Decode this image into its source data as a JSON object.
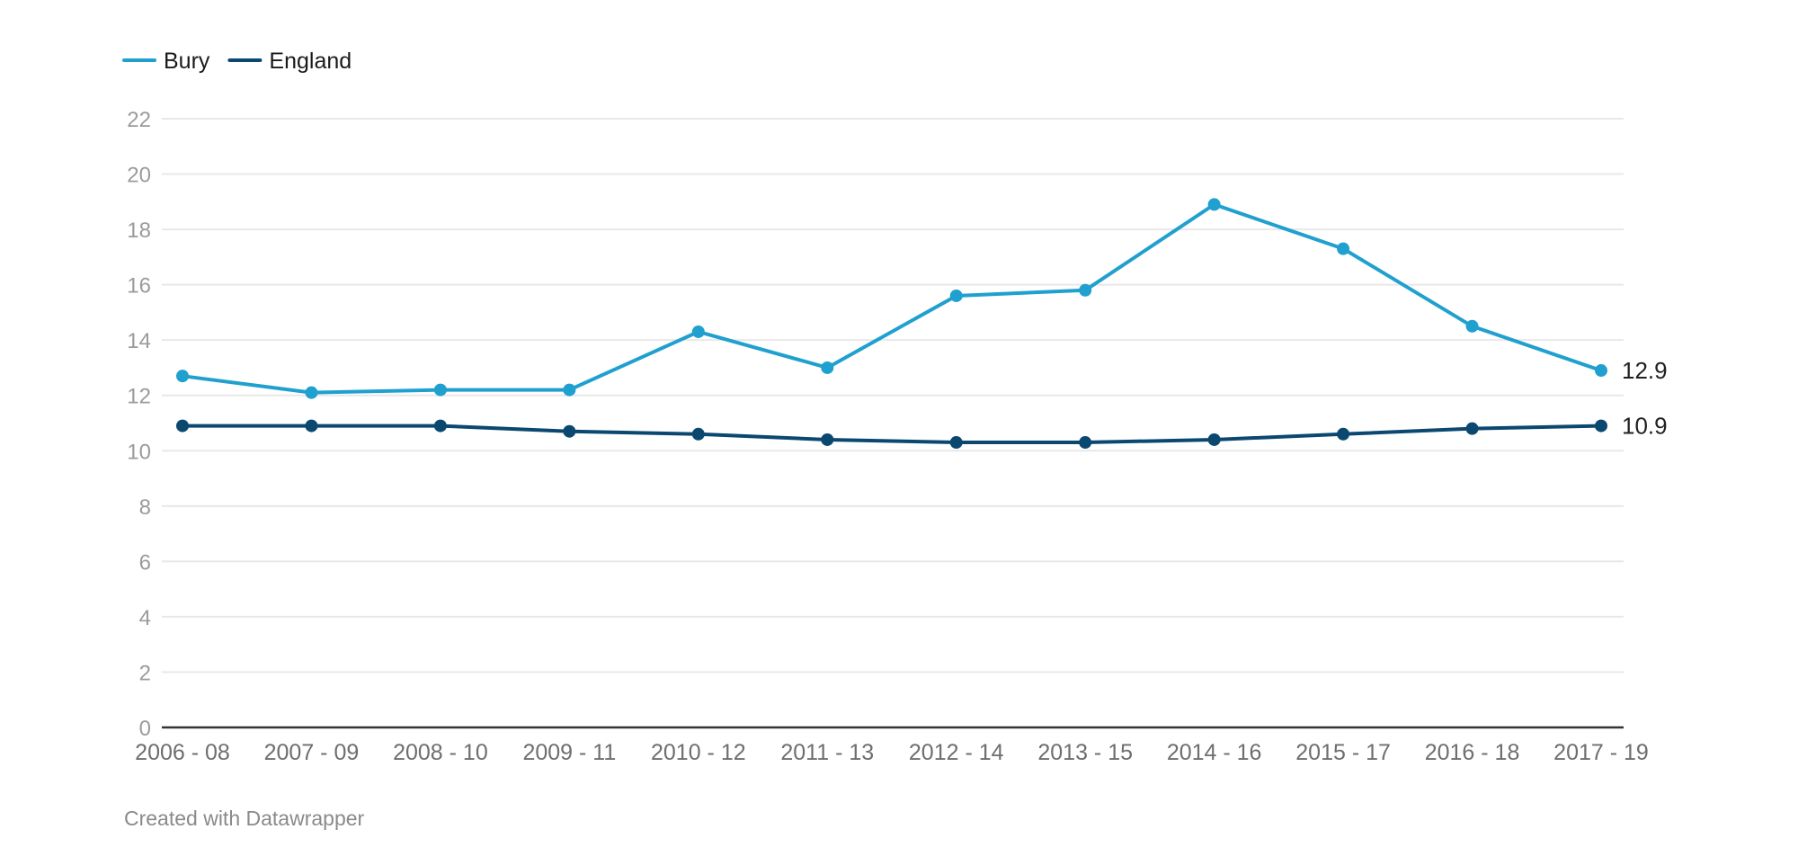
{
  "chart_data": {
    "type": "line",
    "categories": [
      "2006 - 08",
      "2007 - 09",
      "2008 - 10",
      "2009 - 11",
      "2010 - 12",
      "2011 - 13",
      "2012 - 14",
      "2013 - 15",
      "2014 - 16",
      "2015 - 17",
      "2016 - 18",
      "2017 - 19"
    ],
    "series": [
      {
        "name": "Bury",
        "color": "#20a0cf",
        "values": [
          12.7,
          12.1,
          12.2,
          12.2,
          14.3,
          13.0,
          15.6,
          15.8,
          18.9,
          17.3,
          14.5,
          12.9
        ],
        "end_label": "12.9"
      },
      {
        "name": "England",
        "color": "#0b4870",
        "values": [
          10.9,
          10.9,
          10.9,
          10.7,
          10.6,
          10.4,
          10.3,
          10.3,
          10.4,
          10.6,
          10.8,
          10.9
        ],
        "end_label": "10.9"
      }
    ],
    "y_ticks": [
      0,
      2,
      4,
      6,
      8,
      10,
      12,
      14,
      16,
      18,
      20,
      22
    ],
    "ylim": [
      0,
      22
    ],
    "grid": true,
    "legend_position": "top-left",
    "title": "",
    "xlabel": "",
    "ylabel": ""
  },
  "credit": "Created with Datawrapper",
  "colors": {
    "grid": "#e8e8e8",
    "baseline": "#333333",
    "tick_text": "#9b9b9b"
  }
}
